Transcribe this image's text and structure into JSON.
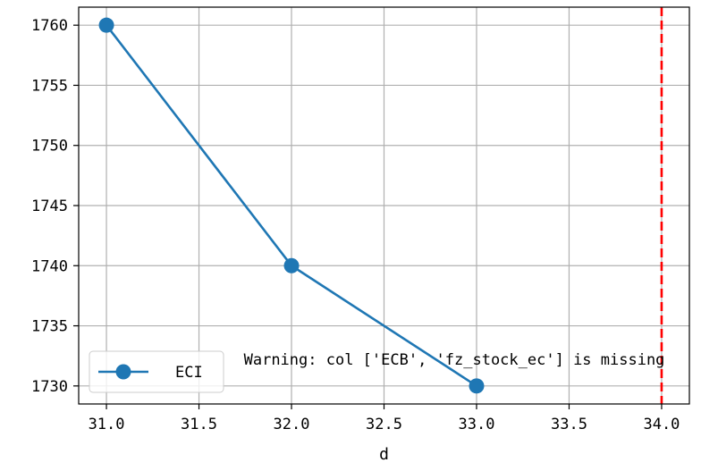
{
  "chart_data": {
    "type": "line",
    "title": "",
    "xlabel": "d",
    "ylabel": "",
    "xlim": [
      30.85,
      34.15
    ],
    "ylim": [
      1728.5,
      1761.5
    ],
    "x_ticks": [
      31.0,
      31.5,
      32.0,
      32.5,
      33.0,
      33.5,
      34.0
    ],
    "x_tick_labels": [
      "31.0",
      "31.5",
      "32.0",
      "32.5",
      "33.0",
      "33.5",
      "34.0"
    ],
    "y_ticks": [
      1730,
      1735,
      1740,
      1745,
      1750,
      1755,
      1760
    ],
    "y_tick_labels": [
      "1730",
      "1735",
      "1740",
      "1745",
      "1750",
      "1755",
      "1760"
    ],
    "grid": true,
    "series": [
      {
        "name": "ECI",
        "color": "#1f77b4",
        "marker": "circle",
        "x": [
          31.0,
          32.0,
          33.0
        ],
        "y": [
          1760,
          1740,
          1730
        ]
      }
    ],
    "reference_lines": [
      {
        "orientation": "vertical",
        "x": 34.0,
        "color": "#ff0000",
        "style": "dashed"
      }
    ],
    "legend": {
      "placement": "lower-left",
      "entries": [
        "ECI"
      ]
    },
    "annotations": [
      {
        "text": "Warning: col ['ECB', 'fz_stock_ec'] is missing",
        "x": 31.8,
        "y": 1732.5
      }
    ]
  }
}
